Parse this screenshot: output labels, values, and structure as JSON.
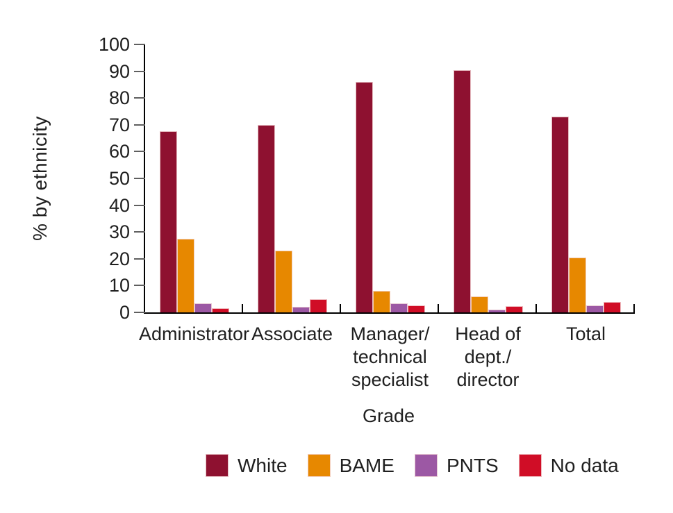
{
  "chart_data": {
    "type": "bar",
    "title": "",
    "xlabel": "Grade",
    "ylabel": "% by ethnicity",
    "ylim": [
      0,
      100
    ],
    "yticks": [
      0,
      10,
      20,
      30,
      40,
      50,
      60,
      70,
      80,
      90,
      100
    ],
    "grid": false,
    "legend_position": "bottom",
    "categories": [
      {
        "name": "Administrator",
        "lines": [
          "Administrator"
        ]
      },
      {
        "name": "Associate",
        "lines": [
          "Associate"
        ]
      },
      {
        "name": "Manager/technical specialist",
        "lines": [
          "Manager/",
          "technical",
          "specialist"
        ]
      },
      {
        "name": "Head of dept./director",
        "lines": [
          "Head of",
          "dept./",
          "director"
        ]
      },
      {
        "name": "Total",
        "lines": [
          "Total"
        ]
      }
    ],
    "series": [
      {
        "name": "White",
        "color": "#8e1130",
        "values": [
          67.5,
          70,
          86,
          90.5,
          73
        ]
      },
      {
        "name": "BAME",
        "color": "#e78800",
        "values": [
          27.5,
          23,
          8,
          6,
          20.5
        ]
      },
      {
        "name": "PNTS",
        "color": "#9c58a4",
        "values": [
          3.5,
          2,
          3.5,
          1,
          2.5
        ]
      },
      {
        "name": "No data",
        "color": "#d00d26",
        "values": [
          1.5,
          5,
          2.5,
          2.3,
          4
        ]
      }
    ]
  }
}
